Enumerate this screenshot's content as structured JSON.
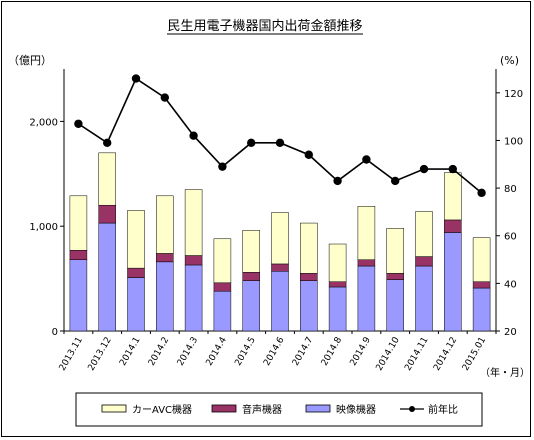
{
  "chart_data": {
    "type": "bar",
    "title": "民生用電子機器国内出荷金額推移",
    "ylabel_left": "（億円）",
    "ylabel_right": "(%)",
    "xlabel": "（年・月）",
    "ylim_left": [
      0,
      2500
    ],
    "yticks_left": [
      "0",
      "1,000",
      "2,000"
    ],
    "ylim_right": [
      20,
      130
    ],
    "yticks_right": [
      "20",
      "40",
      "60",
      "80",
      "100",
      "120"
    ],
    "categories": [
      "2013.11",
      "2013.12",
      "2014.1",
      "2014.2",
      "2014.3",
      "2014.4",
      "2014.5",
      "2014.6",
      "2014.7",
      "2014.8",
      "2014.9",
      "2014.10",
      "2014.11",
      "2014.12",
      "2015.01"
    ],
    "series": [
      {
        "name": "映像機器",
        "kind": "stacked-bar",
        "color": "#9999ff",
        "values": [
          680,
          1030,
          510,
          660,
          630,
          380,
          480,
          570,
          480,
          420,
          620,
          490,
          620,
          940,
          410
        ]
      },
      {
        "name": "音声機器",
        "kind": "stacked-bar",
        "color": "#993366",
        "values": [
          90,
          170,
          90,
          80,
          90,
          80,
          80,
          70,
          70,
          50,
          60,
          60,
          90,
          120,
          60
        ]
      },
      {
        "name": "カーAVC機器",
        "kind": "stacked-bar",
        "color": "#ffffcc",
        "values": [
          520,
          500,
          550,
          550,
          630,
          420,
          400,
          490,
          480,
          360,
          510,
          430,
          430,
          450,
          420
        ]
      },
      {
        "name": "前年比",
        "kind": "line",
        "axis": "right",
        "color": "#000000",
        "values": [
          107,
          99,
          126,
          118,
          102,
          89,
          99,
          99,
          94,
          83,
          92,
          83,
          88,
          88,
          78
        ]
      }
    ],
    "grid": false,
    "legend_placement": "bottom"
  }
}
